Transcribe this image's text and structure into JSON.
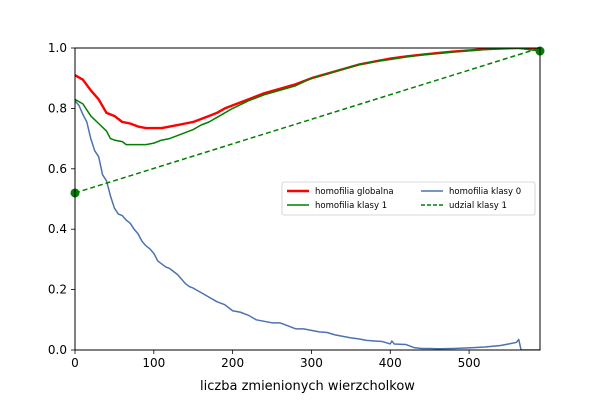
{
  "chart_data": {
    "type": "line",
    "title": "",
    "xlabel": "liczba zmienionych wierzcholkow",
    "ylabel": "",
    "xlim": [
      0,
      590
    ],
    "ylim": [
      0,
      1.0
    ],
    "xticks": [
      0,
      100,
      200,
      300,
      400,
      500
    ],
    "xtick_labels": [
      "0",
      "100",
      "200",
      "300",
      "400",
      "500"
    ],
    "yticks": [
      0,
      0.2,
      0.4,
      0.6,
      0.8,
      1.0
    ],
    "ytick_labels": [
      "0.0",
      "0.2",
      "0.4",
      "0.6",
      "0.8",
      "1.0"
    ],
    "legend_position": "center-right",
    "series": [
      {
        "name": "homofilia globalna",
        "color": "#ff0000",
        "style": "solid",
        "thick": true,
        "points": [
          [
            0,
            0.91
          ],
          [
            10,
            0.895
          ],
          [
            20,
            0.86
          ],
          [
            30,
            0.83
          ],
          [
            40,
            0.785
          ],
          [
            50,
            0.775
          ],
          [
            60,
            0.755
          ],
          [
            70,
            0.75
          ],
          [
            80,
            0.74
          ],
          [
            90,
            0.735
          ],
          [
            100,
            0.735
          ],
          [
            110,
            0.735
          ],
          [
            120,
            0.74
          ],
          [
            130,
            0.745
          ],
          [
            140,
            0.75
          ],
          [
            150,
            0.755
          ],
          [
            160,
            0.765
          ],
          [
            170,
            0.775
          ],
          [
            180,
            0.785
          ],
          [
            190,
            0.8
          ],
          [
            200,
            0.81
          ],
          [
            220,
            0.83
          ],
          [
            240,
            0.85
          ],
          [
            260,
            0.865
          ],
          [
            280,
            0.88
          ],
          [
            300,
            0.9
          ],
          [
            320,
            0.915
          ],
          [
            340,
            0.93
          ],
          [
            360,
            0.945
          ],
          [
            380,
            0.955
          ],
          [
            400,
            0.965
          ],
          [
            420,
            0.972
          ],
          [
            440,
            0.978
          ],
          [
            460,
            0.983
          ],
          [
            480,
            0.988
          ],
          [
            500,
            0.992
          ],
          [
            520,
            0.996
          ],
          [
            540,
            0.998
          ],
          [
            560,
            1.0
          ],
          [
            590,
            1.0
          ]
        ]
      },
      {
        "name": "homofilia klasy 1",
        "color": "#008000",
        "style": "solid",
        "thick": false,
        "points": [
          [
            0,
            0.83
          ],
          [
            10,
            0.815
          ],
          [
            20,
            0.775
          ],
          [
            30,
            0.75
          ],
          [
            40,
            0.725
          ],
          [
            45,
            0.7
          ],
          [
            50,
            0.695
          ],
          [
            60,
            0.69
          ],
          [
            65,
            0.68
          ],
          [
            80,
            0.68
          ],
          [
            90,
            0.68
          ],
          [
            100,
            0.685
          ],
          [
            110,
            0.695
          ],
          [
            120,
            0.7
          ],
          [
            130,
            0.71
          ],
          [
            140,
            0.72
          ],
          [
            150,
            0.73
          ],
          [
            160,
            0.745
          ],
          [
            170,
            0.755
          ],
          [
            180,
            0.77
          ],
          [
            190,
            0.785
          ],
          [
            200,
            0.8
          ],
          [
            220,
            0.825
          ],
          [
            240,
            0.845
          ],
          [
            260,
            0.86
          ],
          [
            280,
            0.875
          ],
          [
            300,
            0.9
          ],
          [
            320,
            0.915
          ],
          [
            340,
            0.93
          ],
          [
            360,
            0.945
          ],
          [
            380,
            0.955
          ],
          [
            400,
            0.962
          ],
          [
            420,
            0.97
          ],
          [
            440,
            0.977
          ],
          [
            460,
            0.982
          ],
          [
            480,
            0.987
          ],
          [
            500,
            0.991
          ],
          [
            520,
            0.995
          ],
          [
            540,
            0.998
          ],
          [
            560,
            1.0
          ],
          [
            590,
            0.99
          ]
        ]
      },
      {
        "name": "homofilia klasy 0",
        "color": "#4c72b0",
        "style": "solid",
        "thick": false,
        "points": [
          [
            0,
            0.825
          ],
          [
            5,
            0.81
          ],
          [
            10,
            0.78
          ],
          [
            15,
            0.755
          ],
          [
            20,
            0.7
          ],
          [
            25,
            0.66
          ],
          [
            30,
            0.64
          ],
          [
            35,
            0.58
          ],
          [
            40,
            0.56
          ],
          [
            45,
            0.51
          ],
          [
            50,
            0.47
          ],
          [
            55,
            0.45
          ],
          [
            60,
            0.445
          ],
          [
            65,
            0.43
          ],
          [
            70,
            0.42
          ],
          [
            75,
            0.4
          ],
          [
            80,
            0.385
          ],
          [
            85,
            0.36
          ],
          [
            90,
            0.345
          ],
          [
            95,
            0.335
          ],
          [
            100,
            0.32
          ],
          [
            105,
            0.295
          ],
          [
            110,
            0.285
          ],
          [
            115,
            0.275
          ],
          [
            120,
            0.27
          ],
          [
            125,
            0.26
          ],
          [
            130,
            0.25
          ],
          [
            135,
            0.235
          ],
          [
            140,
            0.22
          ],
          [
            145,
            0.21
          ],
          [
            150,
            0.205
          ],
          [
            160,
            0.19
          ],
          [
            170,
            0.175
          ],
          [
            180,
            0.16
          ],
          [
            190,
            0.15
          ],
          [
            200,
            0.13
          ],
          [
            210,
            0.125
          ],
          [
            220,
            0.115
          ],
          [
            230,
            0.1
          ],
          [
            240,
            0.095
          ],
          [
            250,
            0.09
          ],
          [
            260,
            0.09
          ],
          [
            270,
            0.08
          ],
          [
            280,
            0.07
          ],
          [
            290,
            0.07
          ],
          [
            300,
            0.065
          ],
          [
            310,
            0.06
          ],
          [
            320,
            0.058
          ],
          [
            330,
            0.05
          ],
          [
            340,
            0.045
          ],
          [
            350,
            0.04
          ],
          [
            360,
            0.037
          ],
          [
            370,
            0.032
          ],
          [
            380,
            0.03
          ],
          [
            390,
            0.028
          ],
          [
            400,
            0.02
          ],
          [
            402,
            0.03
          ],
          [
            405,
            0.02
          ],
          [
            420,
            0.018
          ],
          [
            430,
            0.008
          ],
          [
            440,
            0.005
          ],
          [
            450,
            0.005
          ],
          [
            460,
            0.004
          ],
          [
            480,
            0.005
          ],
          [
            500,
            0.007
          ],
          [
            520,
            0.01
          ],
          [
            540,
            0.015
          ],
          [
            550,
            0.02
          ],
          [
            560,
            0.025
          ],
          [
            563,
            0.035
          ],
          [
            566,
            0.0
          ],
          [
            590,
            0.0
          ]
        ]
      },
      {
        "name": "udzial klasy 1",
        "color": "#008000",
        "style": "dashed",
        "thick": false,
        "points": [
          [
            0,
            0.52
          ],
          [
            590,
            1.0
          ]
        ]
      }
    ],
    "markers": [
      {
        "series": "udzial klasy 1",
        "x": 0,
        "y": 0.52,
        "color": "#008000"
      },
      {
        "series": "homofilia klasy 1",
        "x": 590,
        "y": 0.99,
        "color": "#008000"
      }
    ]
  }
}
